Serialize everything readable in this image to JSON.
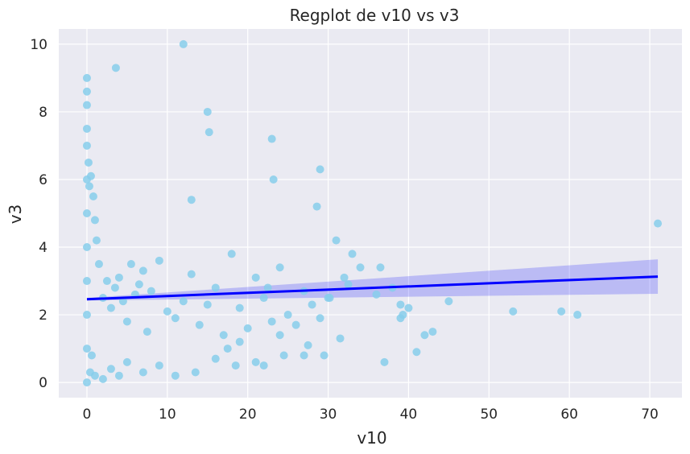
{
  "chart_data": {
    "type": "scatter",
    "title": "Regplot de v10 vs v3",
    "xlabel": "v10",
    "ylabel": "v3",
    "xlim": [
      -3.5,
      74
    ],
    "ylim": [
      -0.45,
      10.45
    ],
    "xticks": [
      0,
      10,
      20,
      30,
      40,
      50,
      60,
      70
    ],
    "yticks": [
      0,
      2,
      4,
      6,
      8,
      10
    ],
    "xtick_labels": [
      "0",
      "10",
      "20",
      "30",
      "40",
      "50",
      "60",
      "70"
    ],
    "ytick_labels": [
      "0",
      "2",
      "4",
      "6",
      "8",
      "10"
    ],
    "grid": true,
    "colors": {
      "background": "#eaeaf2",
      "grid": "#ffffff",
      "points": "#87ceeb",
      "regression_line": "#0000ff",
      "confidence_band": "#0000ff"
    },
    "series": [
      {
        "kind": "points",
        "x": [
          0,
          0,
          0,
          0,
          0,
          0,
          0,
          0,
          0,
          0,
          0,
          0,
          0.2,
          0.3,
          0.5,
          0.8,
          1,
          1.2,
          1.5,
          0.4,
          0.6,
          2,
          2.5,
          3,
          3.5,
          4,
          4.5,
          5,
          5.5,
          6,
          6.5,
          7,
          7.5,
          8,
          9,
          10,
          11,
          12,
          13,
          14,
          15,
          16,
          17,
          18,
          19,
          20,
          21,
          22,
          23,
          24,
          25,
          26,
          27,
          28,
          29,
          30,
          31,
          32,
          33,
          34,
          36,
          37,
          38,
          39,
          40,
          41,
          42,
          43,
          45,
          53,
          59,
          61,
          71,
          3.6,
          12,
          15,
          15.2,
          23,
          23.2,
          29,
          28.6,
          13,
          1,
          2,
          3,
          4,
          5,
          7,
          9,
          11,
          13.5,
          16,
          18.5,
          21,
          24,
          27,
          29.5,
          31.5,
          32.5,
          36.5,
          39,
          39.3,
          22,
          24.5,
          27.5,
          30.2,
          22.5,
          17.5,
          19
        ],
        "y": [
          0,
          1,
          2,
          3,
          4,
          5,
          6,
          7,
          7.5,
          8.2,
          8.6,
          9,
          6.5,
          5.8,
          6.1,
          5.5,
          4.8,
          4.2,
          3.5,
          0.3,
          0.8,
          2.5,
          3,
          2.2,
          2.8,
          3.1,
          2.4,
          1.8,
          3.5,
          2.6,
          2.9,
          3.3,
          1.5,
          2.7,
          3.6,
          2.1,
          1.9,
          2.4,
          3.2,
          1.7,
          2.3,
          2.8,
          1.4,
          3.8,
          2.2,
          1.6,
          3.1,
          2.5,
          1.8,
          3.4,
          2,
          1.7,
          2.7,
          2.3,
          1.9,
          2.5,
          4.2,
          3.1,
          3.8,
          3.4,
          2.6,
          0.6,
          2.8,
          1.9,
          2.2,
          0.9,
          1.4,
          1.5,
          2.4,
          2.1,
          2.1,
          2.0,
          4.7,
          9.3,
          10,
          8,
          7.4,
          7.2,
          6,
          6.3,
          5.2,
          5.4,
          0.2,
          0.1,
          0.4,
          0.2,
          0.6,
          0.3,
          0.5,
          0.2,
          0.3,
          0.7,
          0.5,
          0.6,
          1.4,
          0.8,
          0.8,
          1.3,
          2.9,
          3.4,
          2.3,
          2.0,
          0.5,
          0.8,
          1.1,
          2.5,
          2.8,
          1.0,
          1.2
        ]
      },
      {
        "kind": "regression",
        "x": [
          0,
          71
        ],
        "y": [
          2.46,
          3.13
        ],
        "ci_lower": [
          2.42,
          2.62
        ],
        "ci_upper": [
          2.5,
          3.64
        ]
      }
    ]
  }
}
